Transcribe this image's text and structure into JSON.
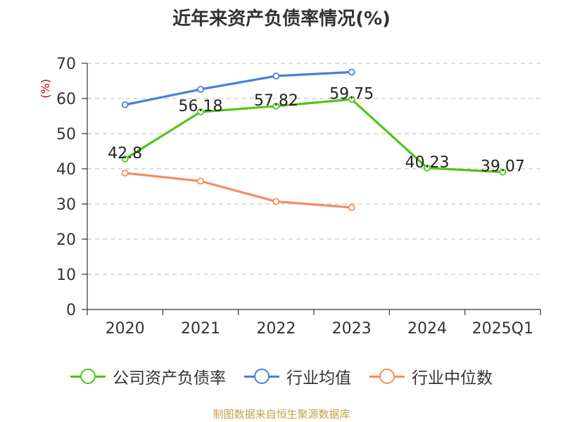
{
  "chart_data": {
    "type": "line",
    "title": "近年来资产负债率情况(%)",
    "ylabel": "(%)",
    "categories": [
      "2020",
      "2021",
      "2022",
      "2023",
      "2024",
      "2025Q1"
    ],
    "ylim": [
      0,
      70
    ],
    "yticks": [
      0,
      10,
      20,
      30,
      40,
      50,
      60,
      70
    ],
    "grid": true,
    "legend_position": "bottom",
    "series": [
      {
        "name": "公司资产负债率",
        "color": "#52c41a",
        "values": [
          42.8,
          56.18,
          57.82,
          59.75,
          40.23,
          39.07
        ],
        "labels": [
          "42.8",
          "56.18",
          "57.82",
          "59.75",
          "40.23",
          "39.07"
        ]
      },
      {
        "name": "行业均值",
        "color": "#4a7fd8",
        "values": [
          58.2,
          62.6,
          66.4,
          67.5,
          null,
          null
        ]
      },
      {
        "name": "行业中位数",
        "color": "#f28e5b",
        "values": [
          38.8,
          36.5,
          30.7,
          29.0,
          null,
          null
        ]
      }
    ]
  },
  "source": "制图数据来自恒生聚源数据库"
}
